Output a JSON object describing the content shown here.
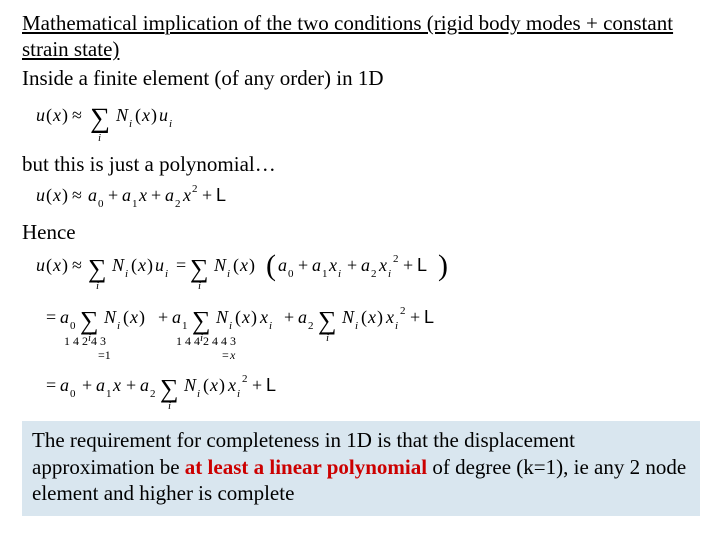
{
  "colors": {
    "background": "#ffffff",
    "text": "#000000",
    "callout_bg": "#d9e6ef",
    "emphasis": "#cc0000"
  },
  "typography": {
    "base_family": "Times New Roman",
    "base_size_pt": 21,
    "formula_style": "italic"
  },
  "heading": {
    "text": "Mathematical implication of the two conditions (rigid body modes + constant strain state)",
    "underline": true
  },
  "subheading": "Inside a finite element (of any order) in 1D",
  "formula1_label": "u(x) ≈ Σ_i N_i(x) u_i",
  "mid1": "but this is just a polynomial…",
  "formula2_label": "u(x) ≈ a₀ + a₁x + a₂x² + L",
  "mid2": "Hence",
  "formula3_label": "u(x) ≈ Σ_i N_i(x) u_i = Σ_i N_i(x) (a₀ + a₁x_i + a₂x_i² + L)  = a₀ Σ_i N_i(x) [=1] + a₁ Σ_i N_i(x) x_i [=x] + a₂ Σ_i N_i(x) x_i² + L  = a₀ + a₁x + a₂ Σ_i N_i(x) x_i² + L",
  "callout": {
    "pre": "The requirement for completeness in 1D is that the displacement approximation be ",
    "emph": "at least a linear polynomial",
    "post": " of degree (k=1), ie any 2 node element and higher is complete"
  }
}
